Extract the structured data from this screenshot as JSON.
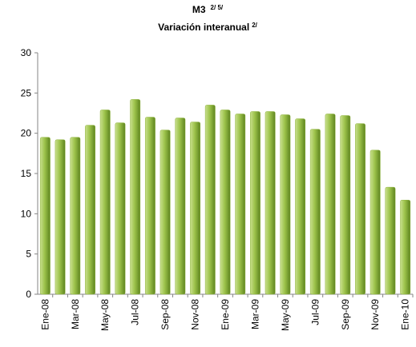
{
  "chart_data": {
    "type": "bar",
    "title": "M3",
    "title_superscript": "2/ 5/",
    "subtitle": "Variación interanual",
    "subtitle_superscript": "2/",
    "categories": [
      "Ene-08",
      null,
      "Mar-08",
      null,
      "May-08",
      null,
      "Jul-08",
      null,
      "Sep-08",
      null,
      "Nov-08",
      null,
      "Ene-09",
      null,
      "Mar-09",
      null,
      "May-09",
      null,
      "Jul-09",
      null,
      "Sep-09",
      null,
      "Nov-09",
      null,
      "Ene-10"
    ],
    "values": [
      19.5,
      19.2,
      19.5,
      21.0,
      22.9,
      21.3,
      24.2,
      22.0,
      20.4,
      21.9,
      21.4,
      23.5,
      22.9,
      22.4,
      22.7,
      22.7,
      22.3,
      21.8,
      20.5,
      22.4,
      22.2,
      21.2,
      17.9,
      13.3,
      11.7
    ],
    "color": "#8db33a",
    "ylim": [
      0,
      30
    ],
    "yticks": [
      0,
      5,
      10,
      15,
      20,
      25,
      30
    ],
    "grid": false
  }
}
